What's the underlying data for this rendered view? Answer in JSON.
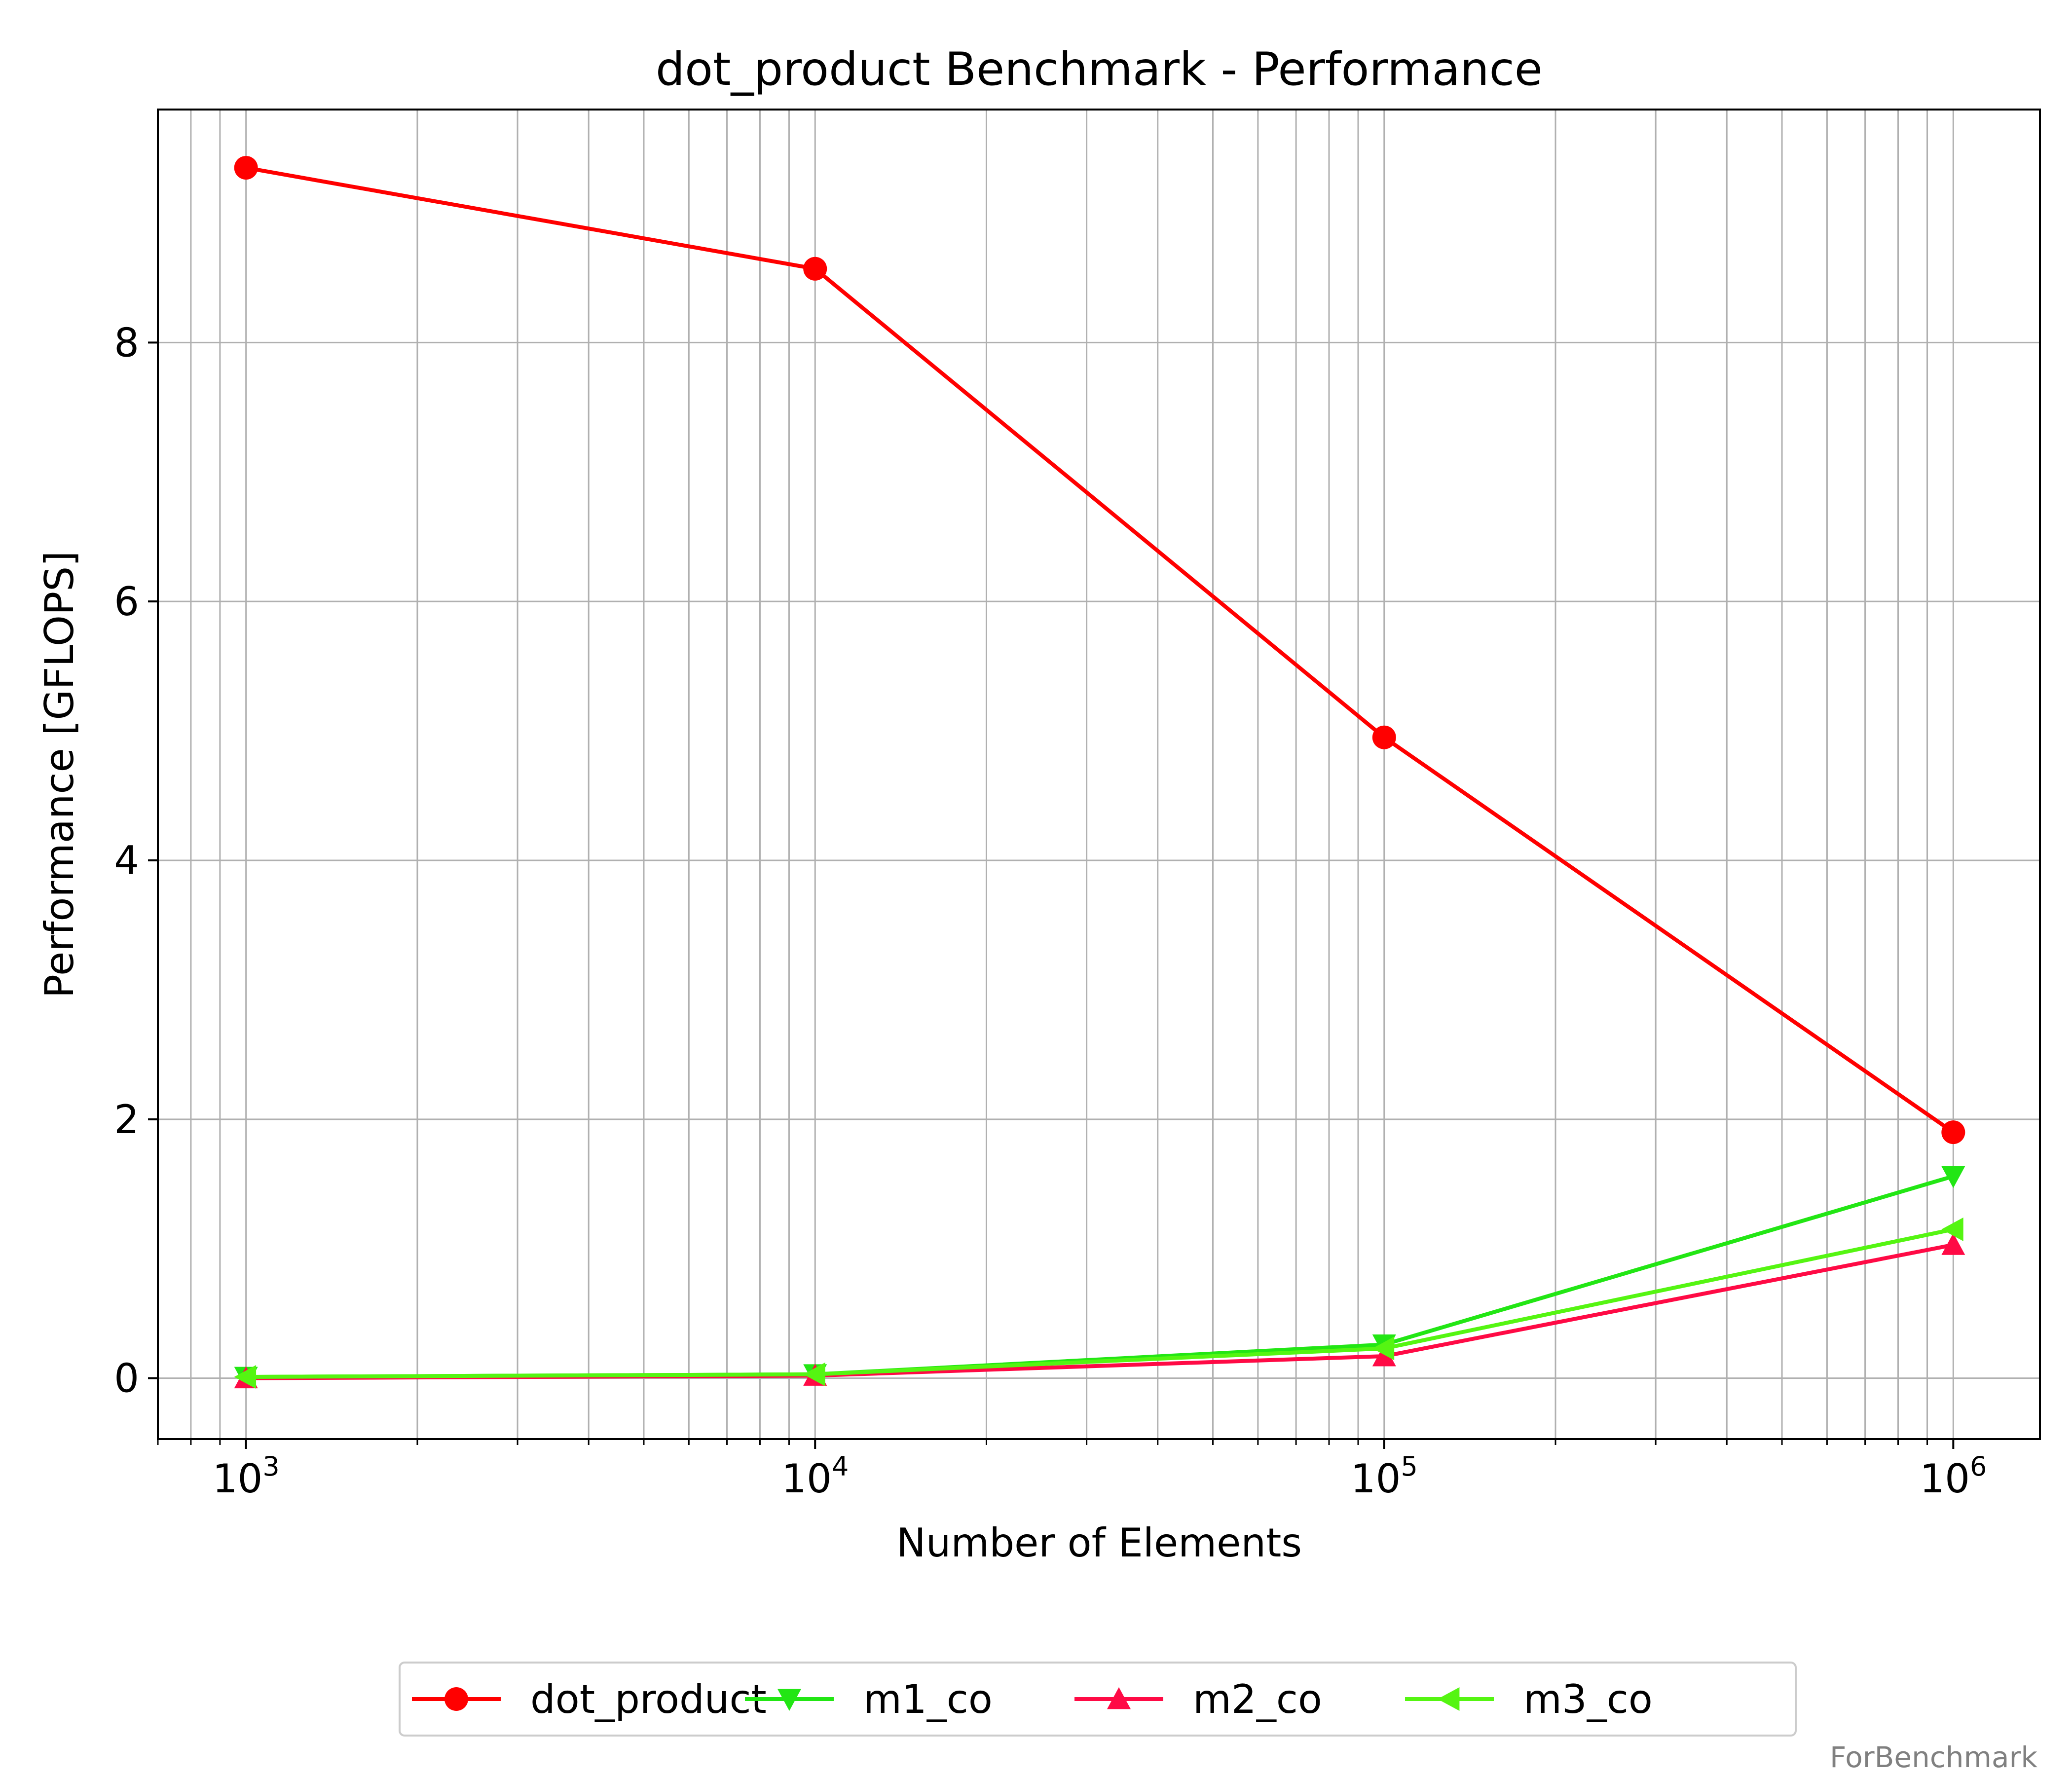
{
  "chart_data": {
    "type": "line",
    "title": "dot_product Benchmark - Performance",
    "xlabel": "Number of Elements",
    "ylabel": "Performance [GFLOPS]",
    "xscale": "log",
    "xlim": [
      700,
      1420000
    ],
    "ylim": [
      -0.47,
      9.8
    ],
    "grid": true,
    "grid_minor_x": true,
    "legend_position": "bottom-center",
    "x": [
      1000,
      10000,
      100000,
      1000000
    ],
    "x_ticks": [
      {
        "value": 1000,
        "base": "10",
        "exp": "3"
      },
      {
        "value": 10000,
        "base": "10",
        "exp": "4"
      },
      {
        "value": 100000,
        "base": "10",
        "exp": "5"
      },
      {
        "value": 1000000,
        "base": "10",
        "exp": "6"
      }
    ],
    "y_ticks": [
      {
        "value": 0,
        "label": "0"
      },
      {
        "value": 2,
        "label": "2"
      },
      {
        "value": 4,
        "label": "4"
      },
      {
        "value": 6,
        "label": "6"
      },
      {
        "value": 8,
        "label": "8"
      }
    ],
    "series": [
      {
        "name": "dot_product",
        "color": "#ff0000",
        "marker": "circle",
        "values": [
          9.35,
          8.57,
          4.95,
          1.9
        ]
      },
      {
        "name": "m1_co",
        "color": "#22e614",
        "marker": "triangle-down",
        "values": [
          0.01,
          0.03,
          0.26,
          1.56
        ]
      },
      {
        "name": "m2_co",
        "color": "#ff0a45",
        "marker": "triangle-up",
        "values": [
          0.0,
          0.02,
          0.17,
          1.03
        ]
      },
      {
        "name": "m3_co",
        "color": "#55f512",
        "marker": "triangle-left",
        "values": [
          0.01,
          0.03,
          0.23,
          1.15
        ]
      }
    ]
  },
  "watermark": "ForBenchmark"
}
